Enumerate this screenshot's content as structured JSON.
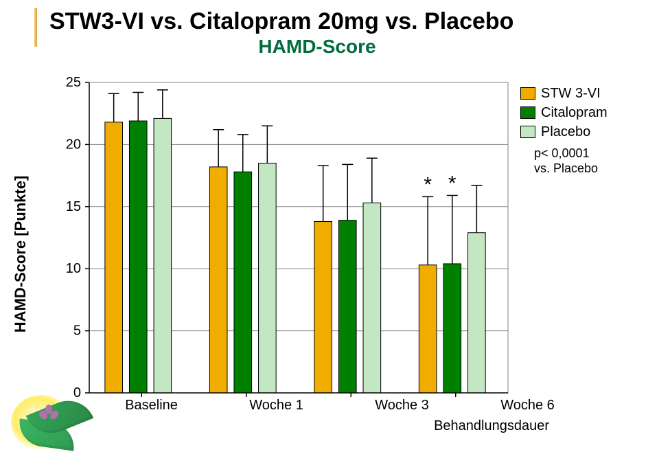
{
  "title_main": "STW3-VI vs. Citalopram 20mg vs. Placebo",
  "title_sub": "HAMD-Score",
  "chart": {
    "type": "bar-grouped",
    "ylabel": "HAMD-Score [Punkte]",
    "xcategories": [
      "Baseline",
      "Woche 1",
      "Woche 3",
      "Woche 6"
    ],
    "xtitle": "Behandlungsdauer",
    "ylim": [
      0,
      25
    ],
    "ytick_step": 5,
    "series": [
      {
        "name": "STW 3-VI",
        "color": "#f0ad00"
      },
      {
        "name": "Citalopram",
        "color": "#008000"
      },
      {
        "name": "Placebo",
        "color": "#c3e6c3"
      }
    ],
    "values": [
      [
        21.8,
        21.9,
        22.1
      ],
      [
        18.2,
        17.8,
        18.5
      ],
      [
        13.8,
        13.9,
        15.3
      ],
      [
        10.3,
        10.4,
        12.9
      ]
    ],
    "errors": [
      [
        2.3,
        2.3,
        2.3
      ],
      [
        3.0,
        3.0,
        3.0
      ],
      [
        4.5,
        4.5,
        3.6
      ],
      [
        5.5,
        5.5,
        3.8
      ]
    ],
    "sig_markers": {
      "group_index": 3,
      "series_indices": [
        0,
        1
      ],
      "glyph": "*"
    },
    "plot_bg": "#ffffff",
    "grid_color": "#808080",
    "axis_color": "#000000",
    "bar_rel_width": 0.72,
    "legend": {
      "note_lines": [
        "p< 0,0001",
        "vs. Placebo"
      ]
    }
  },
  "colors": {
    "title_sub": "#006b3c"
  }
}
